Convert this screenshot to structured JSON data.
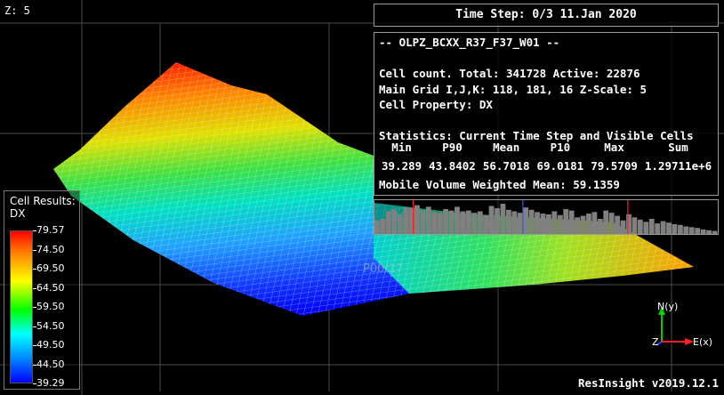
{
  "view": {
    "z_scale_label": "Z: 5"
  },
  "time_step": "Time Step: 0/3 11.Jan 2020",
  "info": {
    "case_name": "-- OLPZ_BCXX_R37_F37_W01 --",
    "cell_count": "Cell count. Total: 341728 Active: 22876",
    "main_grid": "Main Grid I,J,K: 118, 181, 16 Z-Scale: 5",
    "cell_property": "Cell Property: DX",
    "stats_title": "Statistics: Current Time Step and Visible Cells",
    "stats_headers": [
      "Min",
      "P90",
      "Mean",
      "P10",
      "Max",
      "Sum"
    ],
    "stats_values": [
      "39.289",
      "43.8402",
      "56.7018",
      "69.0181",
      "79.5709",
      "1.29711e+6"
    ],
    "mobile_volume": "Mobile Volume Weighted Mean: 59.1359"
  },
  "legend": {
    "title_line1": "Cell Results:",
    "title_line2": "DX",
    "ticks": [
      "79.57",
      "74.50",
      "69.50",
      "64.50",
      "59.50",
      "54.50",
      "49.50",
      "44.50",
      "39.29"
    ]
  },
  "axes": {
    "north": "N(y)",
    "east": "E(x)",
    "z": "Z"
  },
  "footer": "ResInsight v2019.12.1",
  "colors": {
    "p90_marker": "#ff2020",
    "mean_marker": "#3050ff",
    "p10_marker": "#ff2020",
    "histogram_bar": "#808080"
  },
  "histogram_bins": [
    18,
    20,
    30,
    32,
    26,
    35,
    34,
    38,
    31,
    36,
    29,
    27,
    33,
    31,
    36,
    30,
    31,
    28,
    30,
    25,
    37,
    34,
    40,
    32,
    30,
    28,
    35,
    32,
    29,
    27,
    26,
    30,
    25,
    33,
    31,
    22,
    24,
    27,
    29,
    20,
    31,
    28,
    24,
    18,
    26,
    22,
    19,
    16,
    20,
    14,
    17,
    15,
    13,
    12,
    10,
    9,
    8,
    6,
    5,
    4
  ]
}
